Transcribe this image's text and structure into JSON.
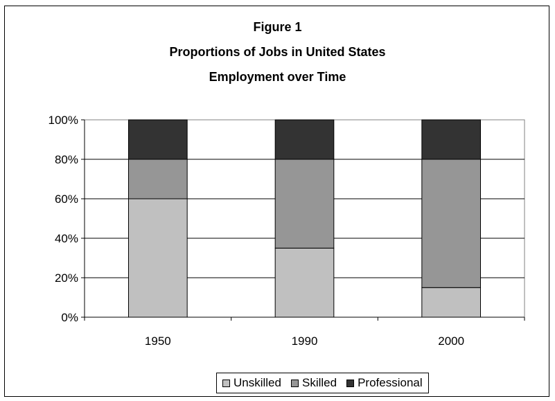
{
  "chart_data": {
    "type": "bar",
    "stacked": true,
    "title": [
      "Figure 1",
      "Proportions of Jobs in United States",
      "Employment over Time"
    ],
    "categories": [
      "1950",
      "1990",
      "2000"
    ],
    "series": [
      {
        "name": "Unskilled",
        "values": [
          60,
          35,
          15
        ],
        "color": "#c0c0c0"
      },
      {
        "name": "Skilled",
        "values": [
          20,
          45,
          65
        ],
        "color": "#969696"
      },
      {
        "name": "Professional",
        "values": [
          20,
          20,
          20
        ],
        "color": "#333333"
      }
    ],
    "ylim": [
      0,
      100
    ],
    "yticks": [
      "0%",
      "20%",
      "40%",
      "60%",
      "80%",
      "100%"
    ],
    "grid": true,
    "legend_position": "bottom"
  }
}
